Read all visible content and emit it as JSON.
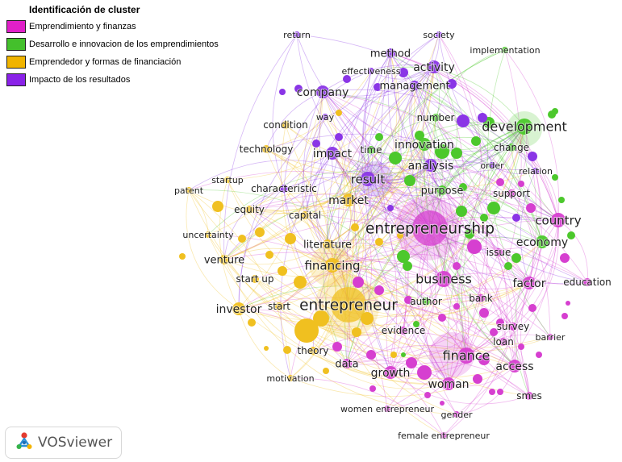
{
  "legend": {
    "title": "Identificación de cluster",
    "clusters": [
      {
        "label": "Emprendimiento y finanzas",
        "color": "#e020c8"
      },
      {
        "label": "Desarrollo e innovacion de los emprendimientos",
        "color": "#44c02c"
      },
      {
        "label": "Emprendedor y formas de financiación",
        "color": "#f0b400"
      },
      {
        "label": "Impacto de los resultados",
        "color": "#8a22e8"
      }
    ]
  },
  "logo": {
    "text": "VOSviewer",
    "icon": "vosviewer-logo-icon"
  },
  "chart_data": {
    "type": "network",
    "clusters": {
      "magenta": "#d63fd0",
      "green": "#4cc82c",
      "yellow": "#f0c020",
      "purple": "#8a35e6"
    },
    "terms": [
      {
        "term": "entrepreneurship",
        "cluster": "magenta",
        "weight": 10
      },
      {
        "term": "entrepreneur",
        "cluster": "yellow",
        "weight": 10
      },
      {
        "term": "business",
        "cluster": "magenta",
        "weight": 7
      },
      {
        "term": "finance",
        "cluster": "magenta",
        "weight": 7
      },
      {
        "term": "development",
        "cluster": "green",
        "weight": 7
      },
      {
        "term": "country",
        "cluster": "magenta",
        "weight": 6
      },
      {
        "term": "financing",
        "cluster": "yellow",
        "weight": 6
      },
      {
        "term": "result",
        "cluster": "purple",
        "weight": 6
      },
      {
        "term": "innovation",
        "cluster": "green",
        "weight": 5
      },
      {
        "term": "impact",
        "cluster": "purple",
        "weight": 5
      },
      {
        "term": "analysis",
        "cluster": "purple",
        "weight": 5
      },
      {
        "term": "growth",
        "cluster": "magenta",
        "weight": 5
      },
      {
        "term": "woman",
        "cluster": "magenta",
        "weight": 5
      },
      {
        "term": "access",
        "cluster": "magenta",
        "weight": 5
      },
      {
        "term": "factor",
        "cluster": "magenta",
        "weight": 5
      },
      {
        "term": "economy",
        "cluster": "green",
        "weight": 5
      },
      {
        "term": "investor",
        "cluster": "yellow",
        "weight": 5
      },
      {
        "term": "market",
        "cluster": "yellow",
        "weight": 5
      },
      {
        "term": "company",
        "cluster": "purple",
        "weight": 5
      },
      {
        "term": "activity",
        "cluster": "purple",
        "weight": 5
      },
      {
        "term": "venture",
        "cluster": "yellow",
        "weight": 4
      },
      {
        "term": "data",
        "cluster": "magenta",
        "weight": 4
      },
      {
        "term": "management",
        "cluster": "purple",
        "weight": 4
      },
      {
        "term": "method",
        "cluster": "purple",
        "weight": 4
      },
      {
        "term": "literature",
        "cluster": "yellow",
        "weight": 4
      },
      {
        "term": "purpose",
        "cluster": "green",
        "weight": 4
      },
      {
        "term": "evidence",
        "cluster": "magenta",
        "weight": 3
      },
      {
        "term": "capital",
        "cluster": "yellow",
        "weight": 3
      },
      {
        "term": "characteristic",
        "cluster": "purple",
        "weight": 3
      },
      {
        "term": "support",
        "cluster": "magenta",
        "weight": 3
      },
      {
        "term": "change",
        "cluster": "green",
        "weight": 3
      },
      {
        "term": "time",
        "cluster": "green",
        "weight": 3
      },
      {
        "term": "author",
        "cluster": "green",
        "weight": 3
      },
      {
        "term": "bank",
        "cluster": "magenta",
        "weight": 3
      },
      {
        "term": "issue",
        "cluster": "magenta",
        "weight": 3
      },
      {
        "term": "loan",
        "cluster": "magenta",
        "weight": 3
      },
      {
        "term": "survey",
        "cluster": "magenta",
        "weight": 3
      },
      {
        "term": "theory",
        "cluster": "yellow",
        "weight": 3
      },
      {
        "term": "start",
        "cluster": "yellow",
        "weight": 3
      },
      {
        "term": "start up",
        "cluster": "yellow",
        "weight": 3
      },
      {
        "term": "equity",
        "cluster": "yellow",
        "weight": 3
      },
      {
        "term": "number",
        "cluster": "green",
        "weight": 3
      },
      {
        "term": "technology",
        "cluster": "yellow",
        "weight": 3
      },
      {
        "term": "condition",
        "cluster": "yellow",
        "weight": 3
      },
      {
        "term": "education",
        "cluster": "magenta",
        "weight": 3
      },
      {
        "term": "smes",
        "cluster": "magenta",
        "weight": 3
      },
      {
        "term": "barrier",
        "cluster": "magenta",
        "weight": 2
      },
      {
        "term": "order",
        "cluster": "purple",
        "weight": 2
      },
      {
        "term": "relation",
        "cluster": "purple",
        "weight": 2
      },
      {
        "term": "way",
        "cluster": "purple",
        "weight": 2
      },
      {
        "term": "effectiveness",
        "cluster": "purple",
        "weight": 2
      },
      {
        "term": "return",
        "cluster": "purple",
        "weight": 2
      },
      {
        "term": "society",
        "cluster": "purple",
        "weight": 2
      },
      {
        "term": "implementation",
        "cluster": "green",
        "weight": 2
      },
      {
        "term": "startup",
        "cluster": "yellow",
        "weight": 2
      },
      {
        "term": "patent",
        "cluster": "yellow",
        "weight": 2
      },
      {
        "term": "uncertainty",
        "cluster": "yellow",
        "weight": 2
      },
      {
        "term": "motivation",
        "cluster": "yellow",
        "weight": 2
      },
      {
        "term": "gender",
        "cluster": "magenta",
        "weight": 2
      },
      {
        "term": "women entrepreneur",
        "cluster": "magenta",
        "weight": 2
      },
      {
        "term": "female entrepreneur",
        "cluster": "magenta",
        "weight": 2
      }
    ]
  }
}
